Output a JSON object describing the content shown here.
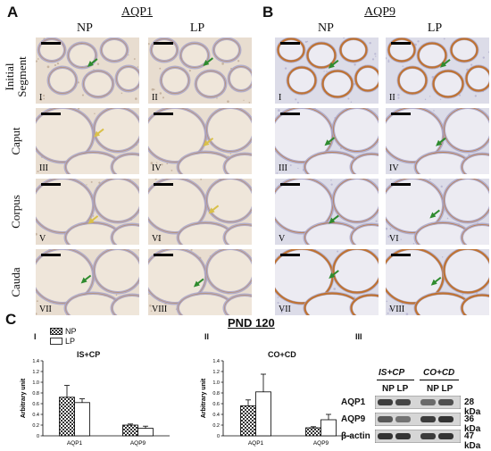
{
  "panelA": {
    "letter": "A",
    "title": "AQP1",
    "col_np": "NP",
    "col_lp": "LP"
  },
  "panelB": {
    "letter": "B",
    "title": "AQP9",
    "col_np": "NP",
    "col_lp": "LP"
  },
  "row_labels": [
    "Initial Segment",
    "Caput",
    "Corpus",
    "Cauda"
  ],
  "row_label_lines": [
    [
      "Initial",
      "Segment"
    ],
    [
      "Caput"
    ],
    [
      "Corpus"
    ],
    [
      "Cauda"
    ]
  ],
  "numerals_np": [
    "I",
    "III",
    "V",
    "VII"
  ],
  "numerals_lp": [
    "II",
    "IV",
    "VI",
    "VIII"
  ],
  "colors": {
    "aqp1_bg": "#e8ddd0",
    "aqp1_tubule": "#efe6da",
    "aqp1_stain": "#b98a62",
    "aqp9_bg": "#dcdce8",
    "aqp9_tubule": "#ecebf2",
    "aqp9_stain": "#c0702a",
    "epithelium": "#a8a4c8",
    "arrow_green": "#2e8b2e",
    "arrow_yellow": "#d9c04a"
  },
  "panelC": {
    "letter": "C",
    "pnd": "PND 120",
    "sub_I": "I",
    "sub_II": "II",
    "sub_III": "III",
    "legend_np": "NP",
    "legend_lp": "LP",
    "ylabel": "Arbitrary unit",
    "blot": {
      "head_left": "IS+CP",
      "head_right": "CO+CD",
      "lanes_left": "NP LP",
      "lanes_right": "NP LP",
      "rows": [
        {
          "name": "AQP1",
          "size": "28 kDa"
        },
        {
          "name": "AQP9",
          "size": "36 kDa"
        },
        {
          "name": "β-actin",
          "size": "47 kDa"
        }
      ]
    }
  },
  "chart_data": [
    {
      "type": "bar",
      "title": "IS+CP",
      "ylabel": "Arbitrary unit",
      "categories": [
        "AQP1",
        "AQP9"
      ],
      "series": [
        {
          "name": "NP",
          "values": [
            0.72,
            0.2
          ],
          "errors": [
            0.22,
            0.02
          ]
        },
        {
          "name": "LP",
          "values": [
            0.62,
            0.14
          ],
          "errors": [
            0.07,
            0.04
          ]
        }
      ],
      "ylim": [
        0,
        1.4
      ],
      "yticks": [
        0,
        0.2,
        0.4,
        0.6,
        0.8,
        1.0,
        1.2,
        1.4
      ]
    },
    {
      "type": "bar",
      "title": "CO+CD",
      "ylabel": "Arbitrary unit",
      "categories": [
        "AQP1",
        "AQP9"
      ],
      "series": [
        {
          "name": "NP",
          "values": [
            0.56,
            0.15
          ],
          "errors": [
            0.11,
            0.02
          ]
        },
        {
          "name": "LP",
          "values": [
            0.82,
            0.3
          ],
          "errors": [
            0.33,
            0.1
          ]
        }
      ],
      "ylim": [
        0,
        1.4
      ],
      "yticks": [
        0,
        0.2,
        0.4,
        0.6,
        0.8,
        1.0,
        1.2,
        1.4
      ]
    }
  ]
}
